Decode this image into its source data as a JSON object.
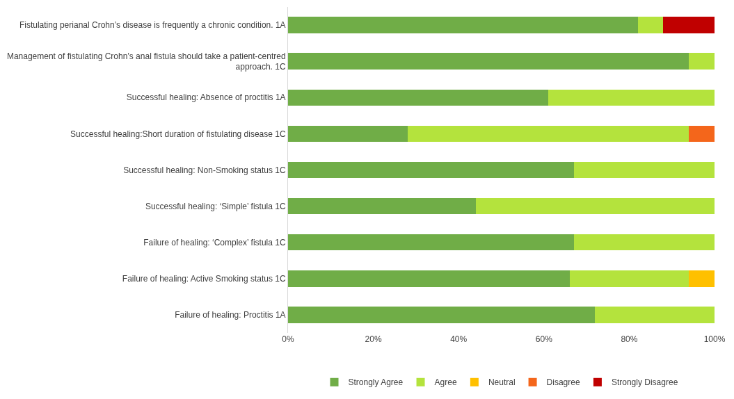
{
  "chart_data": {
    "type": "bar",
    "orientation": "horizontal",
    "stacked": true,
    "categories": [
      "Fistulating perianal Crohn’s disease is frequently a chronic condition. 1A",
      "Management of fistulating Crohn’s anal fistula should take a patient-centred\napproach. 1C",
      "Successful healing: Absence of proctitis 1A",
      "Successful healing:Short duration of fistulating disease 1C",
      "Successful healing: Non-Smoking status 1C",
      "Successful healing: ‘Simple’ fistula 1C",
      "Failure of healing: ‘Complex’ fistula 1C",
      "Failure of healing: Active Smoking status 1C",
      "Failure of healing: Proctitis 1A"
    ],
    "series": [
      {
        "name": "Strongly Agree",
        "color": "#70ad47",
        "values": [
          82,
          94,
          61,
          28,
          67,
          44,
          67,
          66,
          72
        ]
      },
      {
        "name": "Agree",
        "color": "#b4e33d",
        "values": [
          6,
          6,
          39,
          66,
          33,
          56,
          33,
          28,
          28
        ]
      },
      {
        "name": "Neutral",
        "color": "#ffc000",
        "values": [
          null,
          null,
          null,
          null,
          null,
          null,
          null,
          6,
          null
        ]
      },
      {
        "name": "Disagree",
        "color": "#f4661b",
        "values": [
          null,
          null,
          null,
          6,
          null,
          null,
          null,
          null,
          null
        ]
      },
      {
        "name": "Strongly Disagree",
        "color": "#c00000",
        "values": [
          12,
          null,
          null,
          null,
          null,
          null,
          null,
          null,
          null
        ]
      }
    ],
    "xlim": [
      0,
      100
    ],
    "xticks": [
      {
        "value": 0,
        "label": "0%"
      },
      {
        "value": 20,
        "label": "20%"
      },
      {
        "value": 40,
        "label": "40%"
      },
      {
        "value": 60,
        "label": "60%"
      },
      {
        "value": 80,
        "label": "80%"
      },
      {
        "value": 100,
        "label": "100%"
      }
    ],
    "legend": "bottom"
  }
}
